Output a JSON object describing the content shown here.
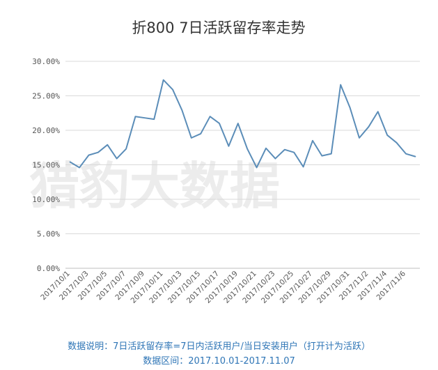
{
  "colors": {
    "series": "#5b8db8",
    "note": "#2e75b6"
  },
  "watermark": "猎豹大数据",
  "notes": {
    "definition": "数据说明：7日活跃留存率=7日内活跃用户/当日安装用户（打开计为活跃）",
    "range": "数据区间：2017.10.01-2017.11.07"
  },
  "chart_data": {
    "type": "line",
    "title": "折800 7日活跃留存率走势",
    "xlabel": "",
    "ylabel": "",
    "ylim": [
      0,
      30
    ],
    "yticks": [
      "0.00%",
      "5.00%",
      "10.00%",
      "15.00%",
      "20.00%",
      "25.00%",
      "30.00%"
    ],
    "ytick_values": [
      0,
      5,
      10,
      15,
      20,
      25,
      30
    ],
    "grid": true,
    "legend": "none",
    "x": [
      "2017/10/1",
      "2017/10/2",
      "2017/10/3",
      "2017/10/4",
      "2017/10/5",
      "2017/10/6",
      "2017/10/7",
      "2017/10/8",
      "2017/10/9",
      "2017/10/10",
      "2017/10/11",
      "2017/10/12",
      "2017/10/13",
      "2017/10/14",
      "2017/10/15",
      "2017/10/16",
      "2017/10/17",
      "2017/10/18",
      "2017/10/19",
      "2017/10/20",
      "2017/10/21",
      "2017/10/22",
      "2017/10/23",
      "2017/10/24",
      "2017/10/25",
      "2017/10/26",
      "2017/10/27",
      "2017/10/28",
      "2017/10/29",
      "2017/10/30",
      "2017/10/31",
      "2017/11/1",
      "2017/11/2",
      "2017/11/3",
      "2017/11/4",
      "2017/11/5",
      "2017/11/6",
      "2017/11/7"
    ],
    "x_tick_labels": [
      "2017/10/1",
      "2017/10/3",
      "2017/10/5",
      "2017/10/7",
      "2017/10/9",
      "2017/10/11",
      "2017/10/13",
      "2017/10/15",
      "2017/10/17",
      "2017/10/19",
      "2017/10/21",
      "2017/10/23",
      "2017/10/25",
      "2017/10/27",
      "2017/10/29",
      "2017/10/31",
      "2017/11/2",
      "2017/11/4",
      "2017/11/6"
    ],
    "series": [
      {
        "values": [
          15.4,
          14.6,
          16.4,
          16.8,
          17.9,
          15.9,
          17.3,
          22.0,
          21.8,
          21.6,
          27.3,
          25.9,
          22.9,
          18.9,
          19.5,
          22.0,
          21.0,
          17.7,
          21.0,
          17.3,
          14.6,
          17.4,
          15.9,
          17.2,
          16.8,
          14.7,
          18.5,
          16.3,
          16.6,
          26.6,
          23.3,
          18.9,
          20.5,
          22.7,
          19.3,
          18.2,
          16.6,
          16.2
        ]
      }
    ]
  }
}
